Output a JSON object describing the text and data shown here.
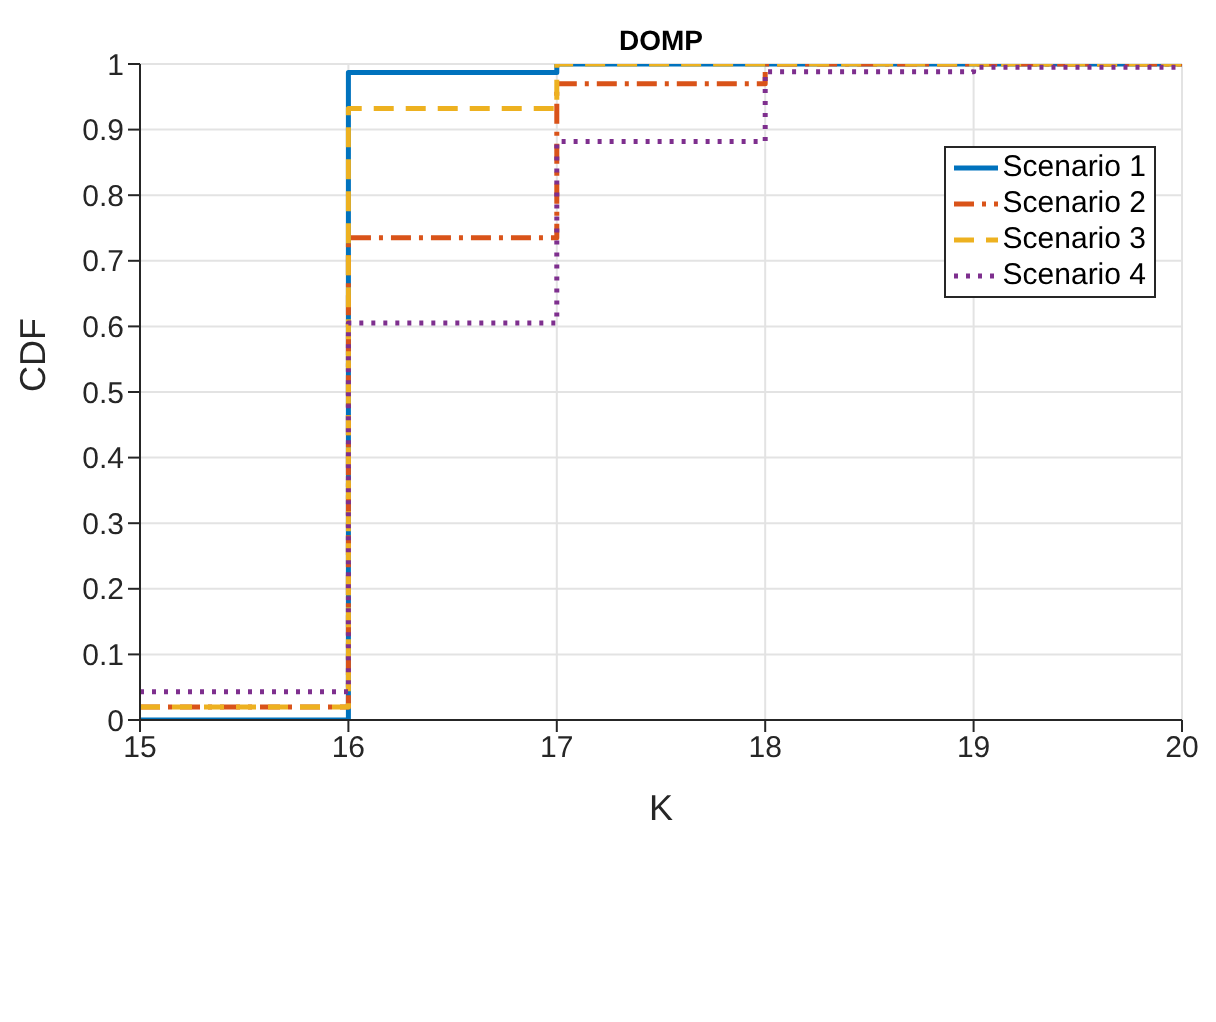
{
  "chart_data": {
    "type": "step",
    "title": "DOMP",
    "xlabel": "K",
    "ylabel": "CDF",
    "x": [
      15,
      16,
      17,
      18,
      19,
      20
    ],
    "series": [
      {
        "name": "Scenario 1",
        "color": "#0072bd",
        "line_style": "solid",
        "values": [
          0,
          0.987,
          1,
          1,
          1,
          1
        ]
      },
      {
        "name": "Scenario 2",
        "color": "#d95319",
        "line_style": "dashdot",
        "values": [
          0.02,
          0.735,
          0.97,
          1,
          1,
          1
        ]
      },
      {
        "name": "Scenario 3",
        "color": "#edb120",
        "line_style": "dashed",
        "values": [
          0.02,
          0.932,
          1,
          1,
          1,
          1
        ]
      },
      {
        "name": "Scenario 4",
        "color": "#7e2f8e",
        "line_style": "dotted",
        "values": [
          0.043,
          0.605,
          0.882,
          0.988,
          0.995,
          0.995
        ]
      }
    ],
    "xlim": [
      15,
      20
    ],
    "xticks": [
      15,
      16,
      17,
      18,
      19,
      20
    ],
    "ylim": [
      0,
      1
    ],
    "yticks": [
      0,
      0.1,
      0.2,
      0.3,
      0.4,
      0.5,
      0.6,
      0.7,
      0.8,
      0.9,
      1
    ],
    "grid": true,
    "legend": "top right",
    "marker": "none"
  }
}
